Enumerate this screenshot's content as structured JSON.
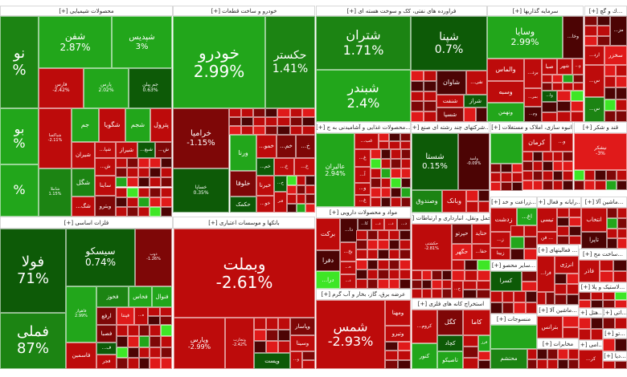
{
  "colors": {
    "LG": "#22a61b",
    "G": "#1c8413",
    "DG": "#0d5a07",
    "NG": "#3ee626",
    "R": "#bd0b0b",
    "DR": "#7e0707",
    "VDR": "#4c0404",
    "BR": "#e01a1a"
  },
  "sectors": [
    {
      "title": "محصولات شیمیایی [+]",
      "tiles": [
        {
          "s": "نو",
          "p": "%",
          "c": "G"
        },
        {
          "s": "بو",
          "p": "%",
          "c": "LG"
        },
        {
          "s": "",
          "p": "%",
          "c": "LG"
        },
        {
          "s": "شفن",
          "p": "2.87%",
          "c": "LG"
        },
        {
          "s": "شپدیس",
          "p": "3%",
          "c": "LG"
        },
        {
          "s": "فارس",
          "p": "-2.42%",
          "c": "R"
        },
        {
          "s": "پارس",
          "p": "2.02%",
          "c": "LG"
        },
        {
          "s": "جم پیلن",
          "p": "0.63%",
          "c": "DG"
        },
        {
          "s": "شپاکسا",
          "p": "-2.11%",
          "c": "R"
        },
        {
          "s": "جم",
          "p": "",
          "c": "LG"
        },
        {
          "s": "شگویا",
          "p": "",
          "c": "R"
        },
        {
          "s": "شجم",
          "p": "",
          "c": "LG"
        },
        {
          "s": "پترول",
          "p": "",
          "c": "R"
        },
        {
          "s": "شیران",
          "p": "",
          "c": "R"
        },
        {
          "s": "...شپا",
          "p": "",
          "c": "R"
        },
        {
          "s": "شیراز",
          "p": "",
          "c": "R"
        },
        {
          "s": "...شبع",
          "p": "",
          "c": "DG"
        },
        {
          "s": "...ش",
          "p": "",
          "c": "DR"
        },
        {
          "s": "شاملا",
          "p": "1.15%",
          "c": "G"
        },
        {
          "s": "شگل",
          "p": "",
          "c": "G"
        },
        {
          "s": "...شگ",
          "p": "",
          "c": "R"
        },
        {
          "s": "...ش",
          "p": "",
          "c": "R"
        },
        {
          "s": "ساینا",
          "p": "",
          "c": "R"
        },
        {
          "s": "وبترو",
          "p": "",
          "c": "DR"
        }
      ]
    },
    {
      "title": "خودرو و ساخت قطعات [+]",
      "tiles": [
        {
          "s": "خودرو",
          "p": "2.99%",
          "c": "LG"
        },
        {
          "s": "حکستر",
          "p": "1.41%",
          "c": "G"
        },
        {
          "s": "خراميا",
          "p": "-1.15%",
          "c": "DR"
        },
        {
          "s": "خساپا",
          "p": "0.35%",
          "c": "DG"
        },
        {
          "s": "ورنا",
          "p": "",
          "c": "LG"
        },
        {
          "s": "...خمو",
          "p": "",
          "c": "R"
        },
        {
          "s": "...خم",
          "p": "",
          "c": "DR"
        },
        {
          "s": "...خ",
          "p": "",
          "c": "DR"
        },
        {
          "s": "...خم",
          "p": "",
          "c": "DG"
        },
        {
          "s": "...خ",
          "p": "",
          "c": "R"
        },
        {
          "s": "...خ",
          "p": "",
          "c": "R"
        },
        {
          "s": "خلوقا",
          "p": "",
          "c": "DR"
        },
        {
          "s": "حکمک",
          "p": "",
          "c": "DG"
        },
        {
          "s": "خیرنا",
          "p": "",
          "c": "R"
        },
        {
          "s": "...خو",
          "p": "",
          "c": "R"
        },
        {
          "s": "...خ",
          "p": "",
          "c": "DG"
        },
        {
          "s": "فنر",
          "p": "",
          "c": "R"
        }
      ]
    },
    {
      "title": "فلزات اساسی [+]",
      "tiles": [
        {
          "s": "فولا",
          "p": "71%",
          "c": "DG"
        },
        {
          "s": "فملی",
          "p": "87%",
          "c": "G"
        },
        {
          "s": "سیسکو",
          "p": "0.74%",
          "c": "DG"
        },
        {
          "s": "ذوب",
          "p": "-1.26%",
          "c": "DR"
        },
        {
          "s": "فاهواز",
          "p": "2.99%",
          "c": "LG"
        },
        {
          "s": "فخوز",
          "p": "",
          "c": "G"
        },
        {
          "s": "فخاس",
          "p": "",
          "c": "LG"
        },
        {
          "s": "فنوال",
          "p": "",
          "c": "LG"
        },
        {
          "s": "ارفع",
          "p": "",
          "c": "DR"
        },
        {
          "s": "فپنتا",
          "p": "",
          "c": "BR"
        },
        {
          "s": "...ه",
          "p": "",
          "c": "R"
        },
        {
          "s": "فصبا",
          "p": "",
          "c": "DR"
        },
        {
          "s": "...ف",
          "p": "",
          "c": "DG"
        },
        {
          "s": "فجر",
          "p": "",
          "c": "R"
        },
        {
          "s": "فاسمین",
          "p": "",
          "c": "R"
        }
      ]
    },
    {
      "title": "بانکها و موسسات اعتباری [+]",
      "tiles": [
        {
          "s": "وبملت",
          "p": "-2.61%",
          "c": "R"
        },
        {
          "s": "وپارس",
          "p": "-2.99%",
          "c": "R"
        },
        {
          "s": "وتجارت",
          "p": "-2.42%",
          "c": "R"
        },
        {
          "s": "وپاسار",
          "p": "",
          "c": "DR"
        },
        {
          "s": "وسینا",
          "p": "",
          "c": "R"
        },
        {
          "s": "وپست",
          "p": "",
          "c": "DG"
        },
        {
          "s": "...و",
          "p": "",
          "c": "R"
        }
      ]
    },
    {
      "title": "فراورده های نفتی، کک و سوخت هسته ای [+]",
      "tiles": [
        {
          "s": "شتران",
          "p": "1.71%",
          "c": "G"
        },
        {
          "s": "شبندر",
          "p": "2.4%",
          "c": "LG"
        },
        {
          "s": "شپنا",
          "p": "0.7%",
          "c": "DG"
        },
        {
          "s": "شاوان",
          "p": "",
          "c": "VDR"
        },
        {
          "s": "...نفی",
          "p": "",
          "c": "R"
        },
        {
          "s": "شنفت",
          "p": "",
          "c": "R"
        },
        {
          "s": "شراز",
          "p": "",
          "c": "DG"
        },
        {
          "s": "شسپا",
          "p": "",
          "c": "DR"
        }
      ]
    },
    {
      "title": "سرمایه گذاریها [+]",
      "tiles": [
        {
          "s": "وسایا",
          "p": "2.99%",
          "c": "LG"
        },
        {
          "s": "...وخا",
          "p": "",
          "c": "VDR"
        },
        {
          "s": "والماس",
          "p": "",
          "c": "R"
        },
        {
          "s": "وسبه",
          "p": "",
          "c": "R"
        },
        {
          "s": "ونهمن",
          "p": "",
          "c": "LG"
        },
        {
          "s": "...برد",
          "p": "",
          "c": "R"
        },
        {
          "s": "...بمر",
          "p": "",
          "c": "R"
        },
        {
          "s": "...وم",
          "p": "",
          "c": "VDR"
        },
        {
          "s": "صبا",
          "p": "",
          "c": "R"
        },
        {
          "s": "شهر",
          "p": "",
          "c": "R"
        },
        {
          "s": "...و",
          "p": "",
          "c": "R"
        },
        {
          "s": "...وا",
          "p": "",
          "c": "DG"
        }
      ]
    },
    {
      "title": "...ك و گچ [+]",
      "tiles": [
        {
          "s": "...مز",
          "p": "",
          "c": "VDR"
        },
        {
          "s": "...ارد",
          "p": "",
          "c": "R"
        },
        {
          "s": "سخزر",
          "p": "",
          "c": "BR"
        },
        {
          "s": "...س",
          "p": "",
          "c": "R"
        },
        {
          "s": "...س",
          "p": "",
          "c": "G"
        }
      ]
    },
    {
      "title": "...محصولات غذایی و آشامیدنی به ج [+]",
      "tiles": [
        {
          "s": "عالیران",
          "p": "2.94%",
          "c": "LG"
        },
        {
          "s": "...غب",
          "p": "",
          "c": "R"
        },
        {
          "s": "...غ",
          "p": "",
          "c": "R"
        },
        {
          "s": "...آ",
          "p": "",
          "c": "R"
        },
        {
          "s": "...و",
          "p": "",
          "c": "R"
        },
        {
          "s": "...غ",
          "p": "",
          "c": "R"
        }
      ]
    },
    {
      "title": "...شرکتهای چند رشته ای صنع [+]",
      "tiles": [
        {
          "s": "شستا",
          "p": "0.15%",
          "c": "DG"
        },
        {
          "s": "وامید",
          "p": "-0.09%",
          "c": "VDR"
        },
        {
          "s": "وصندوق",
          "p": "",
          "c": "G"
        },
        {
          "s": "وبانک",
          "p": "",
          "c": "R"
        }
      ]
    },
    {
      "title": "انبوه سازی، املاک و مستغلات [+]",
      "tiles": [
        {
          "s": "کرمان",
          "p": "",
          "c": "R"
        },
        {
          "s": "...و",
          "p": "",
          "c": "R"
        }
      ]
    },
    {
      "title": "قند و شکر [+]",
      "tiles": [
        {
          "s": "نیشکر",
          "p": "-3%",
          "c": "BR"
        }
      ]
    },
    {
      "title": "مواد و محصولات دارویی [+]",
      "tiles": [
        {
          "s": "برکت",
          "p": "",
          "c": "R"
        },
        {
          "s": "دفرا",
          "p": "",
          "c": "VDR"
        },
        {
          "s": "...درا",
          "p": "",
          "c": "NG"
        },
        {
          "s": "...دا",
          "p": "",
          "c": "VDR"
        },
        {
          "s": "...کا",
          "p": "",
          "c": "VDR"
        },
        {
          "s": "...د",
          "p": "",
          "c": "R"
        },
        {
          "s": "...د",
          "p": "",
          "c": "R"
        },
        {
          "s": "...د",
          "p": "",
          "c": "DR"
        },
        {
          "s": "...بخ",
          "p": "",
          "c": "R"
        },
        {
          "s": "...ه",
          "p": "",
          "c": "R"
        },
        {
          "s": "...د",
          "p": "",
          "c": "R"
        }
      ]
    },
    {
      "title": "...حمل ونقل، انبارداری و ارتباطات [+]",
      "tiles": [
        {
          "s": "حکشتی",
          "p": "-2.81%",
          "c": "R"
        },
        {
          "s": "حپرتو",
          "p": "",
          "c": "DR"
        },
        {
          "s": "حتاید",
          "p": "",
          "c": "R"
        },
        {
          "s": "حگهر",
          "p": "",
          "c": "BR"
        },
        {
          "s": "...حفا",
          "p": "",
          "c": "R"
        },
        {
          "s": "...ح",
          "p": "",
          "c": "R"
        }
      ]
    },
    {
      "title": "...زراعت و خد [+]",
      "tiles": [
        {
          "s": "زدشت",
          "p": "",
          "c": "R"
        },
        {
          "s": "...اغ",
          "p": "",
          "c": "LG"
        },
        {
          "s": "...ز",
          "p": "",
          "c": "R"
        },
        {
          "s": "زبینا",
          "p": "",
          "c": "R"
        }
      ]
    },
    {
      "title": "...رایانه و فعال [+]",
      "tiles": [
        {
          "s": "تیسی",
          "p": "",
          "c": "R"
        },
        {
          "s": "فن ...",
          "p": "",
          "c": "R"
        }
      ]
    },
    {
      "title": "...ماشین آلا [+]",
      "tiles": [
        {
          "s": "انتخاب",
          "p": "",
          "c": "R"
        },
        {
          "s": "تاپرا",
          "p": "",
          "c": "VDR"
        }
      ]
    },
    {
      "title": "... فعالیتهای [+]",
      "tiles": [
        {
          "s": "...فرا",
          "p": "",
          "c": "R"
        },
        {
          "s": "انرژی",
          "p": "",
          "c": "R"
        }
      ]
    },
    {
      "title": "...ساخت مح [+]",
      "tiles": [
        {
          "s": "فاذر",
          "p": "",
          "c": "R"
        }
      ]
    },
    {
      "title": "...سایر محصو [+]",
      "tiles": [
        {
          "s": "کسرا",
          "p": "",
          "c": "DG"
        }
      ]
    },
    {
      "title": "...لاستیک و پلا [+]",
      "tiles": []
    },
    {
      "title": "عرضه برق، گاز، بخار و آب گرم [+]",
      "tiles": [
        {
          "s": "شمس",
          "p": "-2.93%",
          "c": "R"
        },
        {
          "s": "ومهنا",
          "p": "",
          "c": "R"
        },
        {
          "s": "وتيرو",
          "p": "",
          "c": "R"
        }
      ]
    },
    {
      "title": "استخراج کانه های فلزی [+]",
      "tiles": [
        {
          "s": "...کروم",
          "p": "",
          "c": "R"
        },
        {
          "s": "کنور",
          "p": "",
          "c": "LG"
        },
        {
          "s": "کگل",
          "p": "",
          "c": "DR"
        },
        {
          "s": "کاما",
          "p": "",
          "c": "R"
        },
        {
          "s": "کچاد",
          "p": "",
          "c": "DG"
        },
        {
          "s": "تاصیکو",
          "p": "",
          "c": "LG"
        },
        {
          "s": "فرز",
          "p": "",
          "c": "LG"
        }
      ]
    },
    {
      "title": "منسوجات [+]",
      "tiles": [
        {
          "s": "محتشم",
          "p": "",
          "c": "G"
        }
      ]
    },
    {
      "title": "...ماشین آلا [+]",
      "tiles": [
        {
          "s": "بترانس",
          "p": "",
          "c": "R"
        }
      ]
    },
    {
      "title": "مخابرات [+]",
      "tiles": []
    },
    {
      "title": "...هتل [+]",
      "tiles": []
    },
    {
      "title": "...اتی [+]",
      "tiles": []
    },
    {
      "title": "...تو [+]",
      "tiles": []
    },
    {
      "title": "...امی [+]",
      "tiles": [
        {
          "s": "...کر",
          "p": "",
          "c": "R"
        }
      ]
    },
    {
      "title": "...دیا [+]",
      "tiles": []
    }
  ]
}
